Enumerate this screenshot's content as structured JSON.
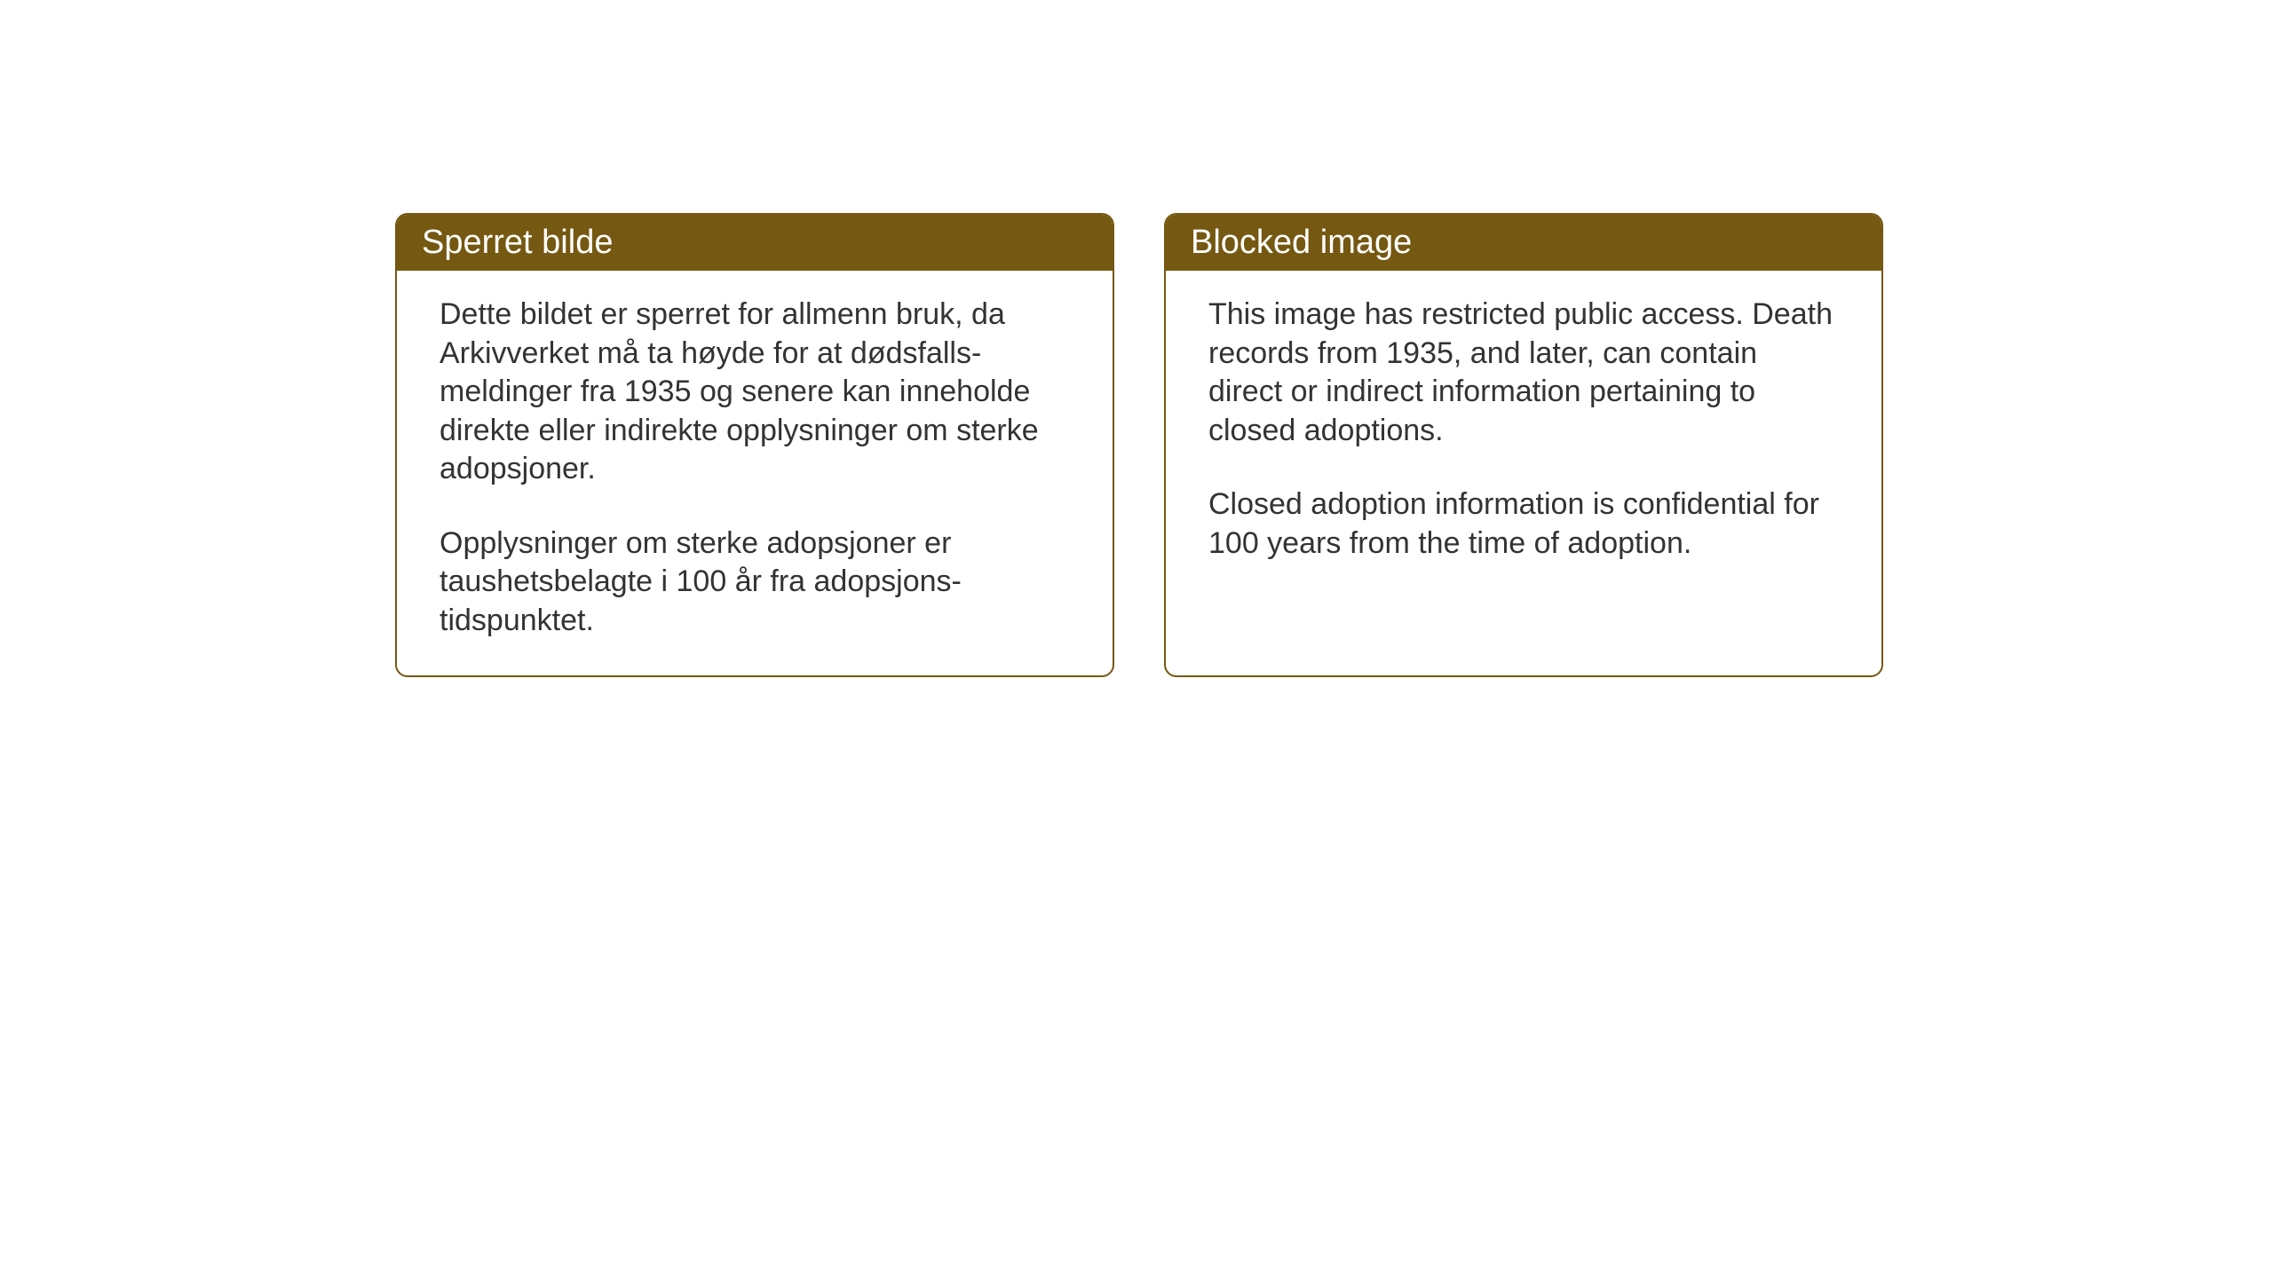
{
  "background_color": "#ffffff",
  "accent_color": "#755811",
  "border_color": "#755811",
  "text_color": "#333333",
  "header_text_color": "#ffffff",
  "border_radius": 14,
  "header_fontsize": 38,
  "body_fontsize": 34,
  "notices": {
    "norwegian": {
      "title": "Sperret bilde",
      "paragraph1": "Dette bildet er sperret for allmenn bruk, da Arkivverket må ta høyde for at dødsfalls-meldinger fra 1935 og senere kan inneholde direkte eller indirekte opplysninger om sterke adopsjoner.",
      "paragraph2": "Opplysninger om sterke adopsjoner er taushetsbelagte i 100 år fra adopsjons-tidspunktet."
    },
    "english": {
      "title": "Blocked image",
      "paragraph1": "This image has restricted public access. Death records from 1935, and later, can contain direct or indirect information pertaining to closed adoptions.",
      "paragraph2": "Closed adoption information is confidential for 100 years from the time of adoption."
    }
  }
}
